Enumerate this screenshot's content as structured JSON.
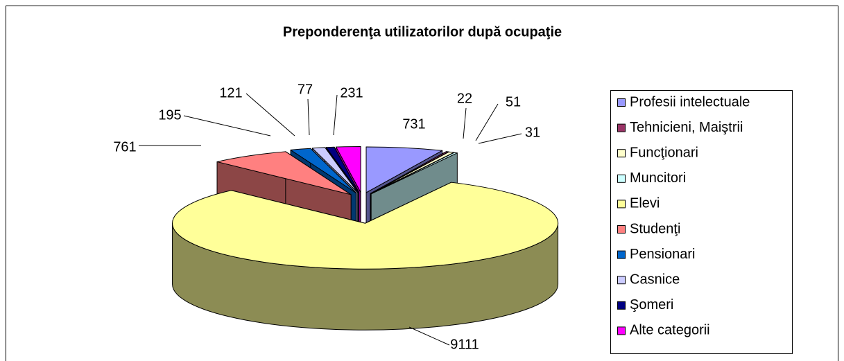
{
  "chart_data": {
    "type": "pie3d",
    "title": "Preponderenţa utilizatorilor după ocupaţie",
    "categories": [
      "Profesii intelectuale",
      "Tehnicieni, Maiştrii",
      "Funcţionari",
      "Muncitori",
      "Elevi",
      "Studenţi",
      "Pensionari",
      "Casnice",
      "Şomeri",
      "Alte categorii"
    ],
    "values": [
      731,
      22,
      51,
      31,
      9111,
      761,
      195,
      121,
      77,
      231
    ],
    "colors": [
      "#9999ff",
      "#993366",
      "#ffffcc",
      "#ccffff",
      "#ffff99",
      "#ff8080",
      "#0066cc",
      "#ccccff",
      "#000080",
      "#ff00ff"
    ],
    "legend": "right"
  }
}
